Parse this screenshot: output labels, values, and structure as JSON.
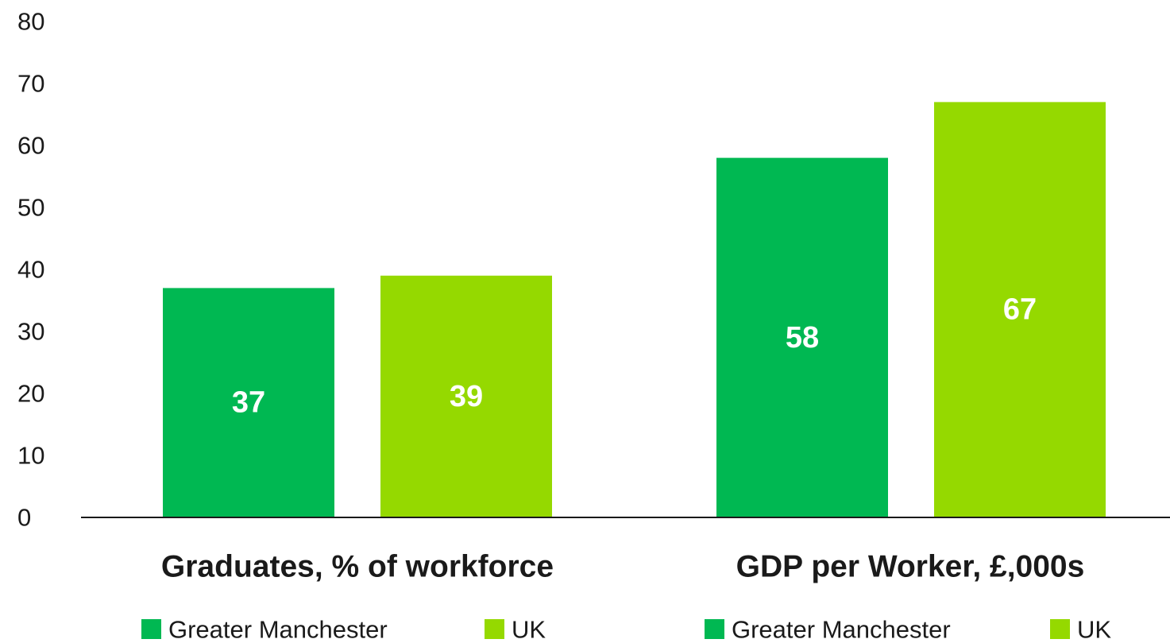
{
  "chart_data": {
    "type": "bar",
    "categories": [
      "Graduates, % of workforce",
      "GDP per Worker, £,000s"
    ],
    "series": [
      {
        "name": "Greater Manchester",
        "values": [
          37,
          58
        ],
        "color": "#00b852"
      },
      {
        "name": "UK",
        "values": [
          39,
          67
        ],
        "color": "#95d900"
      }
    ],
    "yticks": [
      0,
      10,
      20,
      30,
      40,
      50,
      60,
      70,
      80
    ],
    "ylim": [
      0,
      80
    ],
    "grid": false,
    "legend_position": "bottom",
    "title": "",
    "xlabel": "",
    "ylabel": ""
  }
}
